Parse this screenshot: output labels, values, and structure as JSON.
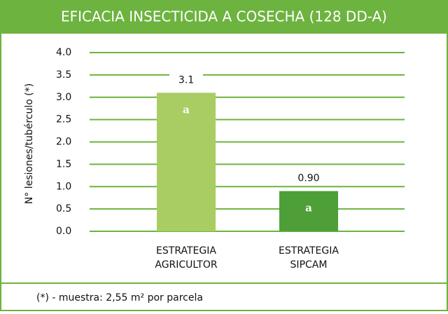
{
  "chart_data": {
    "type": "bar",
    "title": "EFICACIA INSECTICIDA A COSECHA (128 DD-A)",
    "y_label": "N° lesiones/tubérculo (*)",
    "categories": [
      "ESTRATEGIA AGRICULTOR",
      "ESTRATEGIA SIPCAM"
    ],
    "values": [
      3.1,
      0.9
    ],
    "value_labels": [
      "3.1",
      "0.90"
    ],
    "annotations": [
      "a",
      "a"
    ],
    "colors": [
      "#a9cd63",
      "#4e9f38"
    ],
    "ylim": [
      0,
      4
    ],
    "yticks": [
      {
        "value": 0,
        "label": "0.0"
      },
      0.5,
      {
        "value": 1,
        "label": "1.0"
      },
      1.5,
      {
        "value": 2,
        "label": "2.0"
      },
      2.5,
      {
        "value": 3,
        "label": "3.0"
      },
      3.5,
      {
        "value": 4,
        "label": "4.0"
      }
    ],
    "grid": true,
    "footnote": "(*) - muestra: 2,55 m² por parcela"
  }
}
